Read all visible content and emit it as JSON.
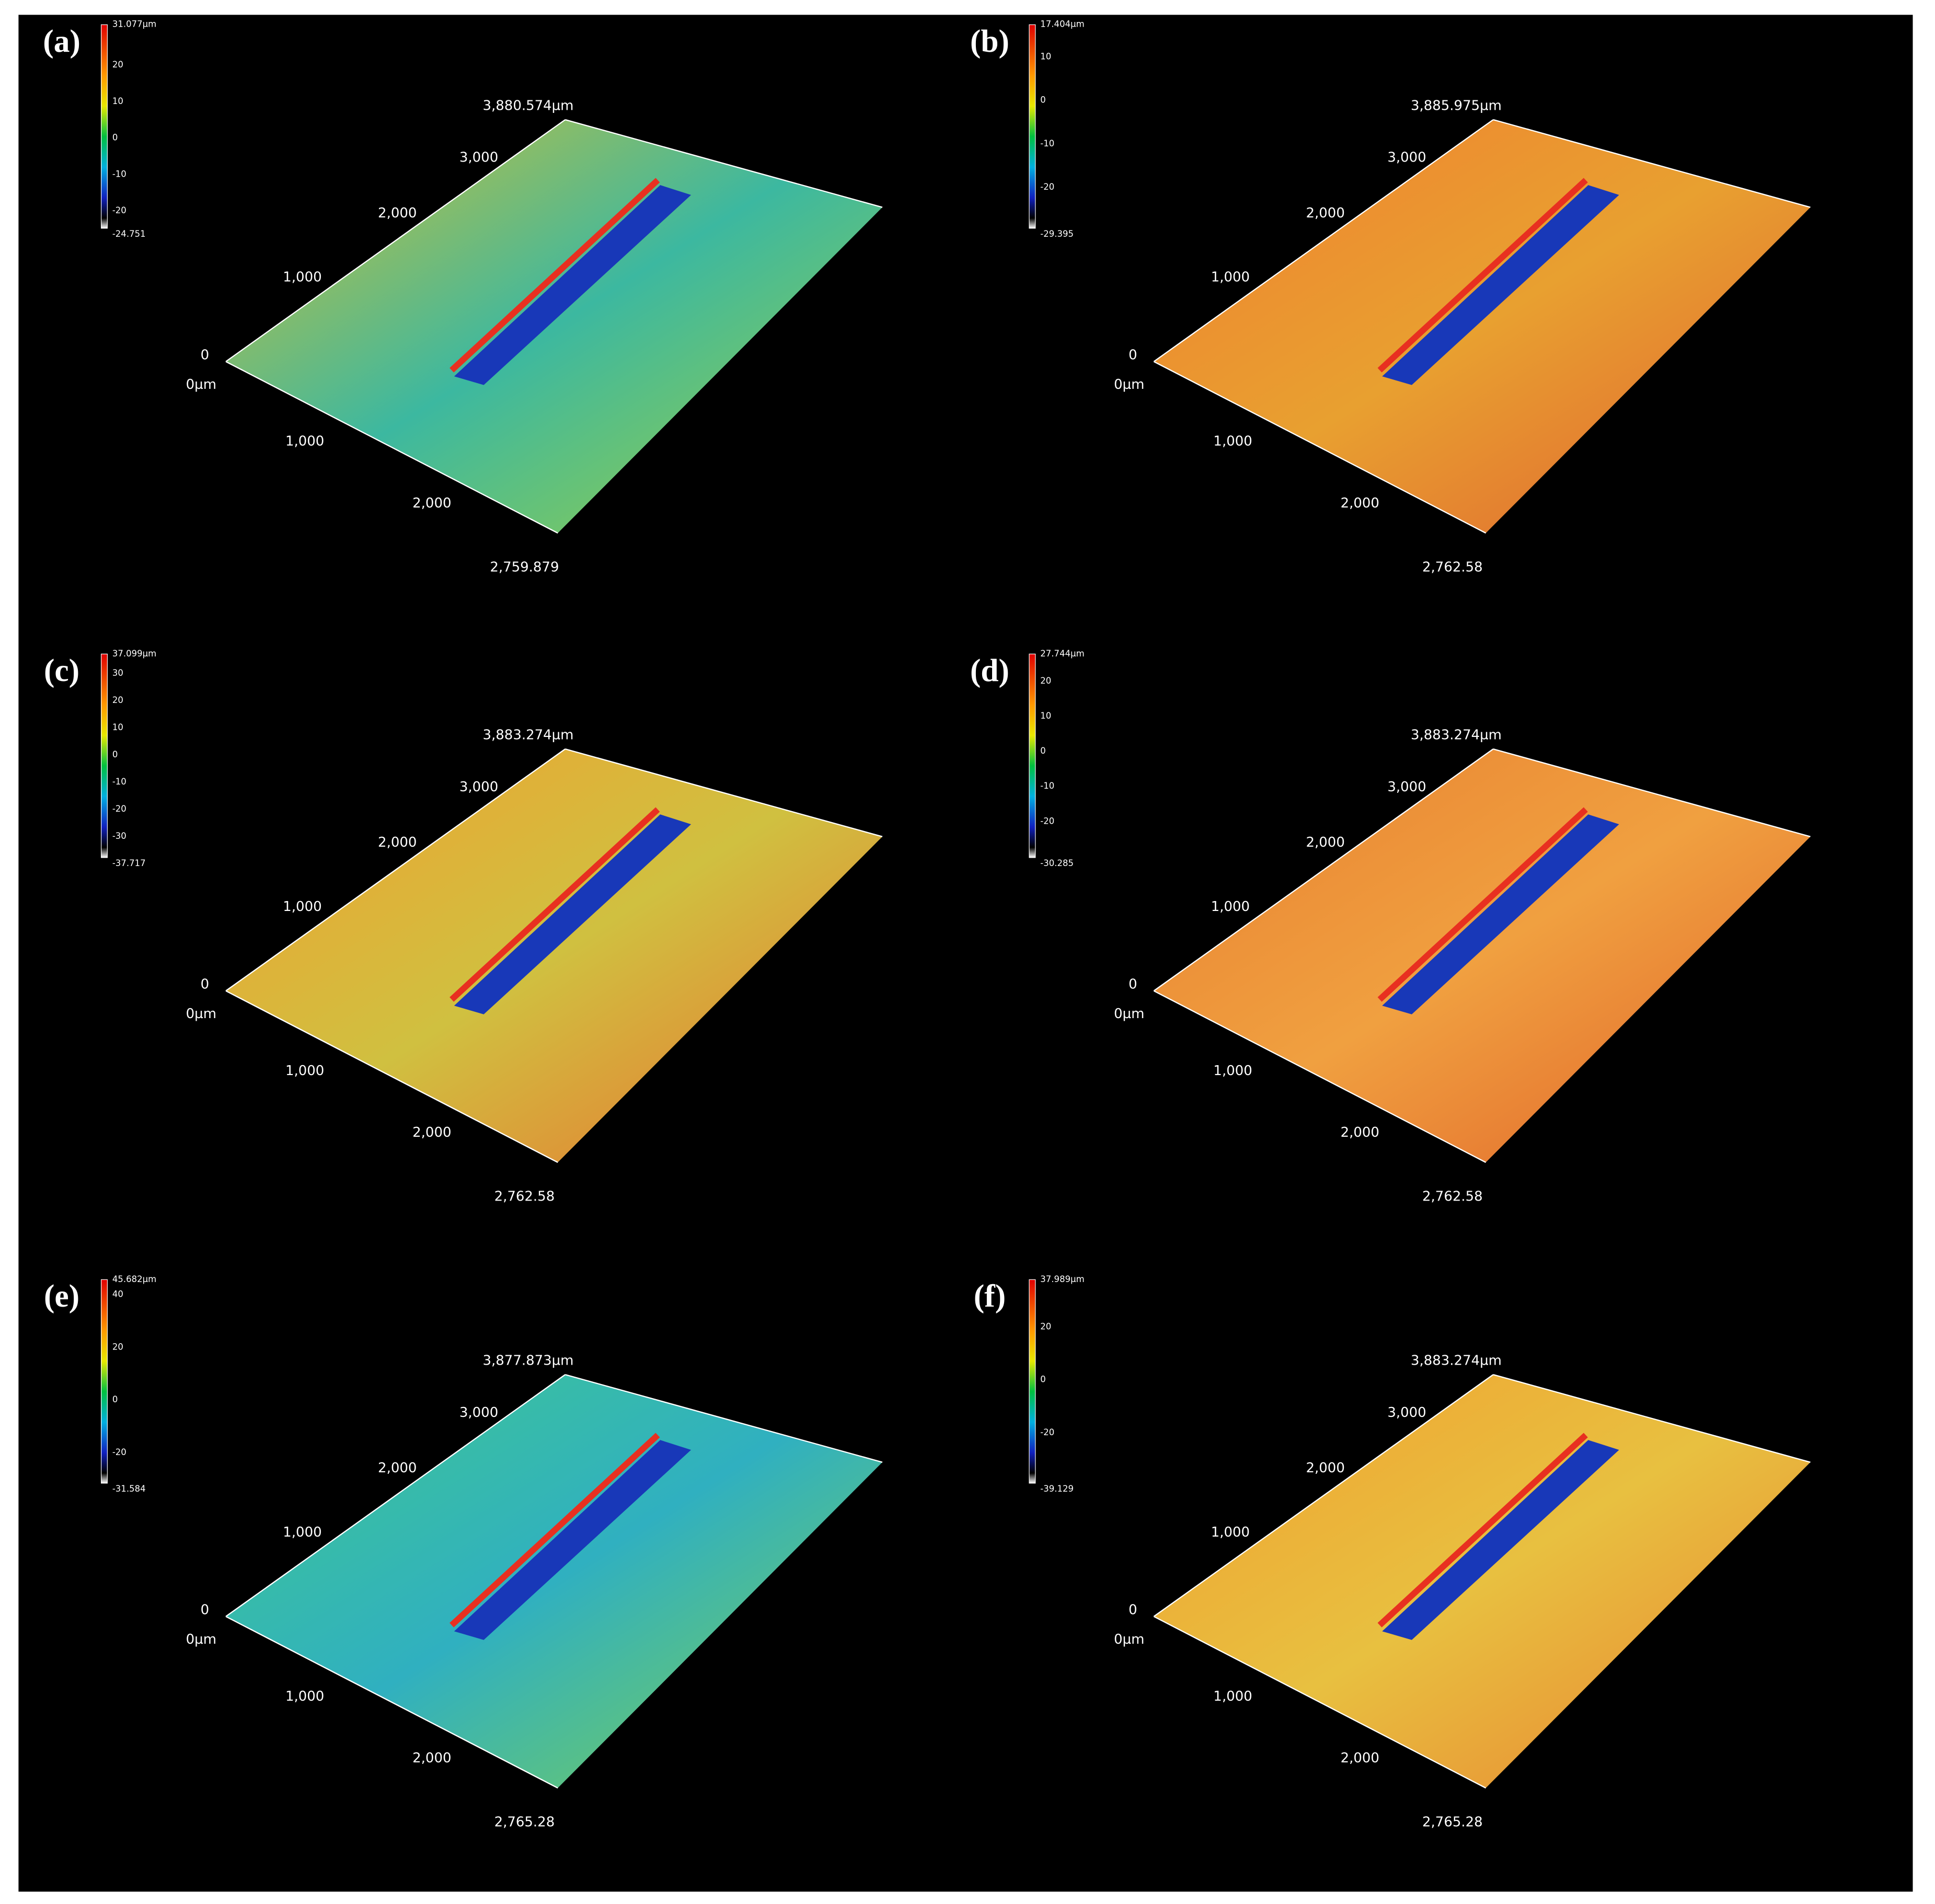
{
  "panels": [
    {
      "label": "(a)",
      "colorbar": {
        "max": "31.077µm",
        "ticks": [
          "20",
          "10",
          "0",
          "-10",
          "-20"
        ],
        "min": "-24.751"
      },
      "y_axis": {
        "end": "3,880.574µm",
        "ticks": [
          "3,000",
          "2,000",
          "1,000",
          "0"
        ]
      },
      "x_axis": {
        "origin": "0µm",
        "ticks": [
          "1,000",
          "2,000"
        ],
        "end": "2,759.879"
      }
    },
    {
      "label": "(b)",
      "colorbar": {
        "max": "17.404µm",
        "ticks": [
          "10",
          "0",
          "-10",
          "-20"
        ],
        "min": "-29.395"
      },
      "y_axis": {
        "end": "3,885.975µm",
        "ticks": [
          "3,000",
          "2,000",
          "1,000",
          "0"
        ]
      },
      "x_axis": {
        "origin": "0µm",
        "ticks": [
          "1,000",
          "2,000"
        ],
        "end": "2,762.58"
      }
    },
    {
      "label": "(c)",
      "colorbar": {
        "max": "37.099µm",
        "ticks": [
          "30",
          "20",
          "10",
          "0",
          "-10",
          "-20",
          "-30"
        ],
        "min": "-37.717"
      },
      "y_axis": {
        "end": "3,883.274µm",
        "ticks": [
          "3,000",
          "2,000",
          "1,000",
          "0"
        ]
      },
      "x_axis": {
        "origin": "0µm",
        "ticks": [
          "1,000",
          "2,000"
        ],
        "end": "2,762.58"
      }
    },
    {
      "label": "(d)",
      "colorbar": {
        "max": "27.744µm",
        "ticks": [
          "20",
          "10",
          "0",
          "-10",
          "-20"
        ],
        "min": "-30.285"
      },
      "y_axis": {
        "end": "3,883.274µm",
        "ticks": [
          "3,000",
          "2,000",
          "1,000",
          "0"
        ]
      },
      "x_axis": {
        "origin": "0µm",
        "ticks": [
          "1,000",
          "2,000"
        ],
        "end": "2,762.58"
      }
    },
    {
      "label": "(e)",
      "colorbar": {
        "max": "45.682µm",
        "ticks": [
          "40",
          "20",
          "0",
          "-20"
        ],
        "min": "-31.584"
      },
      "y_axis": {
        "end": "3,877.873µm",
        "ticks": [
          "3,000",
          "2,000",
          "1,000",
          "0"
        ]
      },
      "x_axis": {
        "origin": "0µm",
        "ticks": [
          "1,000",
          "2,000"
        ],
        "end": "2,765.28"
      }
    },
    {
      "label": "(f)",
      "colorbar": {
        "max": "37.989µm",
        "ticks": [
          "20",
          "0",
          "-20"
        ],
        "min": "-39.129"
      },
      "y_axis": {
        "end": "3,883.274µm",
        "ticks": [
          "3,000",
          "2,000",
          "1,000",
          "0"
        ]
      },
      "x_axis": {
        "origin": "0µm",
        "ticks": [
          "1,000",
          "2,000"
        ],
        "end": "2,765.28"
      }
    }
  ]
}
